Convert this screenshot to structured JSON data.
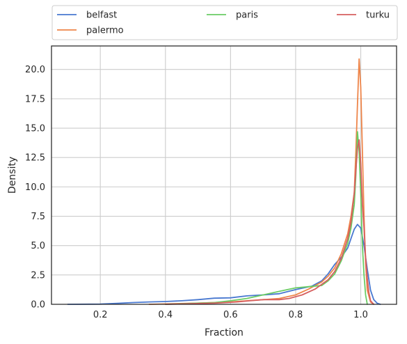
{
  "chart_data": {
    "type": "line",
    "xlabel": "Fraction",
    "ylabel": "Density",
    "xlim": [
      0.05,
      1.11
    ],
    "ylim": [
      0,
      22
    ],
    "x_ticks": [
      0.2,
      0.4,
      0.6,
      0.8,
      1.0
    ],
    "x_tick_labels": [
      "0.2",
      "0.4",
      "0.6",
      "0.8",
      "1.0"
    ],
    "y_ticks": [
      0,
      2.5,
      5,
      7.5,
      10,
      12.5,
      15,
      17.5,
      20
    ],
    "y_tick_labels": [
      "0.0",
      "2.5",
      "5.0",
      "7.5",
      "10.0",
      "12.5",
      "15.0",
      "17.5",
      "20.0"
    ],
    "grid": true,
    "legend_position": "top, above plot, 3 columns",
    "series": [
      {
        "name": "belfast",
        "color": "#4878d0",
        "x": [
          0.1,
          0.2,
          0.25,
          0.3,
          0.35,
          0.4,
          0.45,
          0.5,
          0.55,
          0.6,
          0.65,
          0.7,
          0.75,
          0.8,
          0.85,
          0.88,
          0.9,
          0.92,
          0.94,
          0.96,
          0.97,
          0.98,
          0.99,
          1.0,
          1.01,
          1.02,
          1.03,
          1.04,
          1.05,
          1.06
        ],
        "y": [
          0.0,
          0.02,
          0.08,
          0.15,
          0.2,
          0.24,
          0.3,
          0.4,
          0.52,
          0.55,
          0.72,
          0.8,
          0.9,
          1.25,
          1.55,
          2.0,
          2.6,
          3.4,
          4.0,
          4.8,
          5.6,
          6.4,
          6.8,
          6.5,
          5.0,
          3.0,
          1.2,
          0.4,
          0.1,
          0.0
        ]
      },
      {
        "name": "palermo",
        "color": "#ee854a",
        "x": [
          0.35,
          0.5,
          0.6,
          0.65,
          0.7,
          0.75,
          0.8,
          0.84,
          0.88,
          0.9,
          0.92,
          0.94,
          0.96,
          0.97,
          0.98,
          0.985,
          0.99,
          0.995,
          1.0,
          1.005,
          1.01,
          1.015,
          1.02,
          1.03,
          1.04
        ],
        "y": [
          0.0,
          0.1,
          0.2,
          0.3,
          0.4,
          0.5,
          0.8,
          1.3,
          1.9,
          2.4,
          3.1,
          4.3,
          6.0,
          7.5,
          9.5,
          13.0,
          17.0,
          20.9,
          18.5,
          13.0,
          7.5,
          3.5,
          1.2,
          0.2,
          0.0
        ]
      },
      {
        "name": "paris",
        "color": "#6acc64",
        "x": [
          0.4,
          0.55,
          0.6,
          0.65,
          0.7,
          0.75,
          0.8,
          0.84,
          0.88,
          0.9,
          0.92,
          0.94,
          0.96,
          0.97,
          0.98,
          0.985,
          0.99,
          0.995,
          1.0,
          1.005,
          1.01,
          1.015,
          1.02
        ],
        "y": [
          0.0,
          0.15,
          0.3,
          0.5,
          0.8,
          1.1,
          1.4,
          1.5,
          1.6,
          2.0,
          2.6,
          3.7,
          5.2,
          6.5,
          8.5,
          11.0,
          14.7,
          13.0,
          9.5,
          5.0,
          2.5,
          0.8,
          0.0
        ]
      },
      {
        "name": "turku",
        "color": "#d65f5f",
        "x": [
          0.4,
          0.55,
          0.62,
          0.66,
          0.7,
          0.75,
          0.78,
          0.82,
          0.86,
          0.9,
          0.92,
          0.94,
          0.96,
          0.97,
          0.98,
          0.99,
          0.995,
          1.0,
          1.005,
          1.01,
          1.015,
          1.02,
          1.025,
          1.03,
          1.04
        ],
        "y": [
          0.0,
          0.1,
          0.2,
          0.3,
          0.4,
          0.4,
          0.5,
          0.8,
          1.3,
          2.1,
          2.8,
          3.9,
          5.6,
          7.0,
          9.5,
          13.3,
          14.0,
          12.0,
          8.5,
          6.5,
          4.0,
          2.2,
          1.0,
          0.3,
          0.0
        ]
      }
    ]
  }
}
